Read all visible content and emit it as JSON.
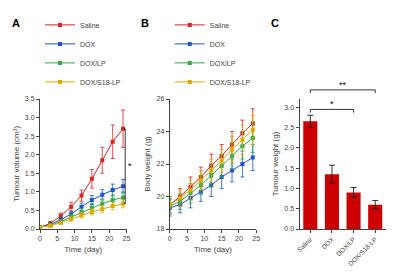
{
  "chart_data": [
    {
      "type": "line",
      "title": "A",
      "xlabel": "Time (day)",
      "ylabel": "Tumour volume (cm³)",
      "x": [
        0,
        3,
        6,
        9,
        12,
        15,
        18,
        21,
        24
      ],
      "series": [
        {
          "name": "Saline",
          "color": "#dd2222",
          "values": [
            0.05,
            0.15,
            0.35,
            0.6,
            0.9,
            1.35,
            1.85,
            2.35,
            2.7
          ],
          "errors": [
            0.02,
            0.05,
            0.08,
            0.12,
            0.15,
            0.25,
            0.35,
            0.45,
            0.5
          ]
        },
        {
          "name": "DOX",
          "color": "#2255cc",
          "values": [
            0.05,
            0.12,
            0.25,
            0.4,
            0.6,
            0.78,
            0.92,
            1.05,
            1.15
          ],
          "errors": [
            0.02,
            0.04,
            0.06,
            0.08,
            0.1,
            0.12,
            0.14,
            0.16,
            0.18
          ]
        },
        {
          "name": "DOX/LP",
          "color": "#33aa44",
          "values": [
            0.05,
            0.1,
            0.2,
            0.32,
            0.45,
            0.58,
            0.68,
            0.78,
            0.85
          ],
          "errors": [
            0.02,
            0.04,
            0.05,
            0.07,
            0.09,
            0.11,
            0.13,
            0.14,
            0.15
          ]
        },
        {
          "name": "DOX/S18-LP",
          "color": "#ddaa00",
          "values": [
            0.05,
            0.09,
            0.17,
            0.27,
            0.37,
            0.46,
            0.54,
            0.62,
            0.68
          ],
          "errors": [
            0.02,
            0.03,
            0.04,
            0.06,
            0.07,
            0.08,
            0.09,
            0.1,
            0.11
          ]
        }
      ],
      "xlim": [
        0,
        25
      ],
      "xticks": [
        0,
        5,
        10,
        15,
        20,
        25
      ],
      "ylim": [
        0.0,
        3.5
      ],
      "yticks": [
        {
          "value": 0,
          "label": "0.0"
        },
        0.5,
        {
          "value": 1,
          "label": "1.0"
        },
        1.5,
        {
          "value": 2,
          "label": "2.0"
        },
        2.5,
        {
          "value": 3,
          "label": "3.0"
        },
        3.5
      ],
      "marker": "square",
      "grid": false,
      "legend": "upper left",
      "annotations": [
        {
          "text": "*",
          "between": [
            "DOX/S18-LP",
            "Saline"
          ]
        }
      ]
    },
    {
      "type": "line",
      "title": "B",
      "xlabel": "Time (day)",
      "ylabel": "Body weight (g)",
      "x": [
        0,
        3,
        6,
        9,
        12,
        15,
        18,
        21,
        24
      ],
      "series": [
        {
          "name": "Saline",
          "color": "#dd2222",
          "values": [
            19.5,
            20.0,
            20.6,
            21.2,
            21.9,
            22.5,
            23.2,
            23.9,
            24.5
          ],
          "errors": [
            0.5,
            0.5,
            0.6,
            0.6,
            0.7,
            0.7,
            0.8,
            0.8,
            0.9
          ]
        },
        {
          "name": "DOX",
          "color": "#2255cc",
          "values": [
            19.3,
            19.5,
            19.9,
            20.3,
            20.7,
            21.2,
            21.6,
            22.0,
            22.4
          ],
          "errors": [
            0.5,
            0.5,
            0.6,
            0.6,
            0.7,
            0.7,
            0.7,
            0.8,
            0.8
          ]
        },
        {
          "name": "DOX/LP",
          "color": "#33aa44",
          "values": [
            19.4,
            19.7,
            20.2,
            20.7,
            21.3,
            21.9,
            22.5,
            23.1,
            23.6
          ],
          "errors": [
            0.5,
            0.5,
            0.6,
            0.6,
            0.7,
            0.7,
            0.8,
            0.8,
            0.9
          ]
        },
        {
          "name": "DOX/S18-LP",
          "color": "#ddaa00",
          "values": [
            19.5,
            19.9,
            20.4,
            21.0,
            21.6,
            22.2,
            22.9,
            23.5,
            24.1
          ],
          "errors": [
            0.5,
            0.5,
            0.6,
            0.6,
            0.7,
            0.7,
            0.8,
            0.9,
            0.9
          ]
        }
      ],
      "xlim": [
        0,
        25
      ],
      "xticks": [
        0,
        5,
        10,
        15,
        20,
        25
      ],
      "ylim": [
        18,
        26
      ],
      "yticks": [
        18,
        20,
        22,
        24,
        26
      ],
      "marker": "square",
      "grid": false,
      "legend": "upper left"
    },
    {
      "type": "bar",
      "title": "C",
      "ylabel": "Tumour weight (g)",
      "categories": [
        "Saline",
        "DOX",
        "DOX/LP",
        "DOX/S18-LP"
      ],
      "values": [
        2.65,
        1.35,
        0.9,
        0.6
      ],
      "errors": [
        0.15,
        0.22,
        0.12,
        0.1
      ],
      "color": "#cc0000",
      "ylim": [
        0.0,
        3.2
      ],
      "yticks": [
        {
          "value": 0,
          "label": "0.0"
        },
        0.5,
        {
          "value": 1,
          "label": "1.0"
        },
        1.5,
        {
          "value": 2,
          "label": "2.0"
        },
        2.5,
        {
          "value": 3,
          "label": "3.0"
        }
      ],
      "grid": false,
      "annotations": [
        {
          "text": "**",
          "between": [
            "Saline",
            "DOX/S18-LP"
          ]
        },
        {
          "text": "*",
          "between": [
            "Saline",
            "DOX/LP"
          ]
        }
      ]
    }
  ]
}
